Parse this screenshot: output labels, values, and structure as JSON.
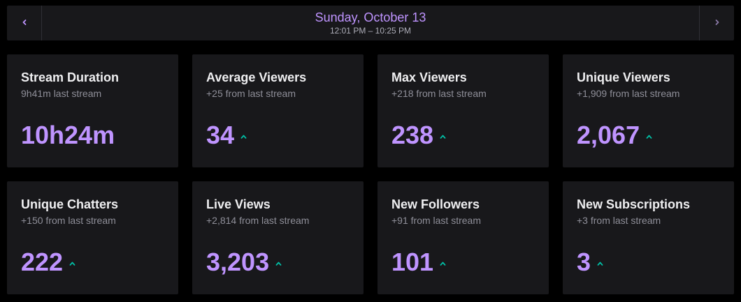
{
  "header": {
    "date": "Sunday, October 13",
    "time_range": "12:01 PM – 10:25 PM",
    "prev_icon": "chevron-left-icon",
    "next_icon": "chevron-right-icon"
  },
  "colors": {
    "accent": "#bf94ff",
    "trend_up": "#00c2a8",
    "card_bg": "#18181b",
    "page_bg": "#000000"
  },
  "stats": [
    {
      "title": "Stream Duration",
      "subtitle": "9h41m last stream",
      "value": "10h24m",
      "trend": "none"
    },
    {
      "title": "Average Viewers",
      "subtitle": "+25 from last stream",
      "value": "34",
      "trend": "up"
    },
    {
      "title": "Max Viewers",
      "subtitle": "+218 from last stream",
      "value": "238",
      "trend": "up"
    },
    {
      "title": "Unique Viewers",
      "subtitle": "+1,909 from last stream",
      "value": "2,067",
      "trend": "up"
    },
    {
      "title": "Unique Chatters",
      "subtitle": "+150 from last stream",
      "value": "222",
      "trend": "up"
    },
    {
      "title": "Live Views",
      "subtitle": "+2,814 from last stream",
      "value": "3,203",
      "trend": "up"
    },
    {
      "title": "New Followers",
      "subtitle": "+91 from last stream",
      "value": "101",
      "trend": "up"
    },
    {
      "title": "New Subscriptions",
      "subtitle": "+3 from last stream",
      "value": "3",
      "trend": "up"
    }
  ]
}
